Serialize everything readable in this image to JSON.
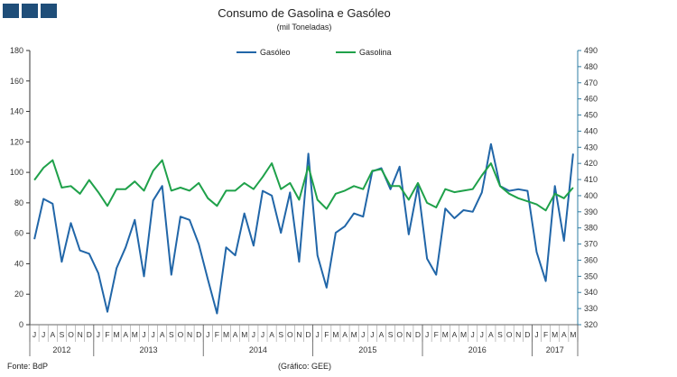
{
  "header": {
    "logo_icon": "bank-logo-icon",
    "title": "Consumo de Gasolina e Gasóleo",
    "subtitle": "(mil Toneladas)"
  },
  "footer": {
    "source": "Fonte: BdP",
    "credit": "(Gráfico: GEE)"
  },
  "colors": {
    "gasoleo": "#2166a8",
    "gasolina": "#1fa14a",
    "axis_right": "#2e7ca3",
    "axis_left": "#333333"
  },
  "chart_data": {
    "type": "line",
    "title": "Consumo de Gasolina e Gasóleo",
    "subtitle": "(mil Toneladas)",
    "legend_position": "top-center",
    "grid": false,
    "y_left": {
      "min": 0,
      "max": 180,
      "step": 20,
      "ticks": [
        "0",
        "20",
        "40",
        "60",
        "80",
        "100",
        "120",
        "140",
        "160",
        "180"
      ]
    },
    "y_right": {
      "min": 320,
      "max": 490,
      "step": 10,
      "ticks": [
        "320",
        "330",
        "340",
        "350",
        "360",
        "370",
        "380",
        "390",
        "400",
        "410",
        "420",
        "430",
        "440",
        "450",
        "460",
        "470",
        "480",
        "490"
      ]
    },
    "months": [
      "J",
      "J",
      "A",
      "S",
      "O",
      "N",
      "D",
      "J",
      "F",
      "M",
      "A",
      "M",
      "J",
      "J",
      "A",
      "S",
      "O",
      "N",
      "D",
      "J",
      "F",
      "M",
      "A",
      "M",
      "J",
      "J",
      "A",
      "S",
      "O",
      "N",
      "D",
      "J",
      "F",
      "M",
      "A",
      "M",
      "J",
      "J",
      "A",
      "S",
      "O",
      "N",
      "D",
      "J",
      "F",
      "M",
      "A",
      "M",
      "J",
      "J",
      "A",
      "S",
      "O",
      "N",
      "D",
      "J",
      "F",
      "M",
      "A",
      "M"
    ],
    "years": [
      {
        "label": "2012",
        "start": 0,
        "count": 7
      },
      {
        "label": "2013",
        "start": 7,
        "count": 12
      },
      {
        "label": "2014",
        "start": 19,
        "count": 12
      },
      {
        "label": "2015",
        "start": 31,
        "count": 12
      },
      {
        "label": "2016",
        "start": 43,
        "count": 12
      },
      {
        "label": "2017",
        "start": 55,
        "count": 5
      }
    ],
    "series": [
      {
        "name": "Gasóleo",
        "axis": "right",
        "values": [
          373,
          398,
          395,
          359,
          383,
          366,
          364,
          352,
          328,
          355,
          368,
          385,
          350,
          397,
          406,
          351,
          387,
          385,
          370,
          348,
          327,
          368,
          363,
          389,
          369,
          403,
          400,
          377,
          402,
          359,
          426,
          363,
          343,
          377,
          381,
          389,
          387,
          415,
          417,
          404,
          418,
          376,
          406,
          361,
          351,
          392,
          386,
          391,
          390,
          402,
          432,
          406,
          403,
          404,
          403,
          365,
          347,
          406,
          372,
          426
        ],
        "label_gasoleo": "Gasóleo"
      },
      {
        "name": "Gasolina",
        "axis": "left",
        "values": [
          95,
          103,
          108,
          90,
          91,
          86,
          95,
          87,
          78,
          89,
          89,
          94,
          88,
          101,
          108,
          88,
          90,
          88,
          93,
          83,
          78,
          88,
          88,
          93,
          89,
          97,
          106,
          89,
          93,
          82,
          104,
          82,
          76,
          86,
          88,
          91,
          89,
          101,
          102,
          91,
          91,
          82,
          93,
          80,
          77,
          89,
          87,
          88,
          89,
          98,
          106,
          91,
          86,
          83,
          81,
          79,
          75,
          86,
          83,
          90
        ]
      }
    ],
    "xlabel": "",
    "ylabel": ""
  }
}
